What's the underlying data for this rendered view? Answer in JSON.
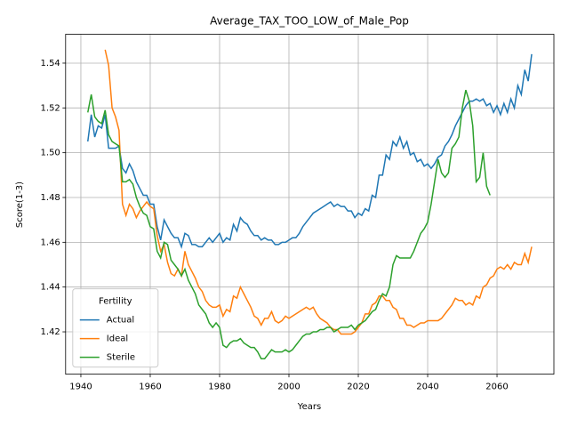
{
  "chart_data": {
    "type": "line",
    "title": "Average_TAX_TOO_LOW_of_Male_Pop",
    "x_label": "Years",
    "y_label": "Score(1-3)",
    "x": [
      1942,
      1943,
      1944,
      1945,
      1946,
      1947,
      1948,
      1949,
      1950,
      1951,
      1952,
      1953,
      1954,
      1955,
      1956,
      1957,
      1958,
      1959,
      1960,
      1961,
      1962,
      1963,
      1964,
      1965,
      1966,
      1967,
      1968,
      1969,
      1970,
      1971,
      1972,
      1973,
      1974,
      1975,
      1976,
      1977,
      1978,
      1979,
      1980,
      1981,
      1982,
      1983,
      1984,
      1985,
      1986,
      1987,
      1988,
      1989,
      1990,
      1991,
      1992,
      1993,
      1994,
      1995,
      1996,
      1997,
      1998,
      1999,
      2000,
      2001,
      2002,
      2003,
      2004,
      2005,
      2006,
      2007,
      2008,
      2009,
      2010,
      2011,
      2012,
      2013,
      2014,
      2015,
      2016,
      2017,
      2018,
      2019,
      2020,
      2021,
      2022,
      2023,
      2024,
      2025,
      2026,
      2027,
      2028,
      2029,
      2030,
      2031,
      2032,
      2033,
      2034,
      2035,
      2036,
      2037,
      2038,
      2039,
      2040,
      2041,
      2042,
      2043,
      2044,
      2045,
      2046,
      2047,
      2048,
      2049,
      2050,
      2051,
      2052,
      2053,
      2054,
      2055,
      2056,
      2057,
      2058,
      2059,
      2060,
      2061,
      2062,
      2063,
      2064,
      2065,
      2066,
      2067,
      2068,
      2069,
      2070
    ],
    "series": [
      {
        "name": "Actual",
        "color": "#1f77b4",
        "values": [
          1.505,
          1.517,
          1.507,
          1.512,
          1.511,
          1.517,
          1.502,
          1.502,
          1.502,
          1.503,
          1.493,
          1.491,
          1.495,
          1.492,
          1.487,
          1.484,
          1.481,
          1.481,
          1.477,
          1.477,
          1.467,
          1.461,
          1.47,
          1.467,
          1.464,
          1.462,
          1.462,
          1.458,
          1.464,
          1.463,
          1.459,
          1.459,
          1.458,
          1.458,
          1.46,
          1.462,
          1.46,
          1.462,
          1.464,
          1.46,
          1.462,
          1.461,
          1.468,
          1.465,
          1.471,
          1.469,
          1.468,
          1.465,
          1.463,
          1.463,
          1.461,
          1.462,
          1.461,
          1.461,
          1.459,
          1.459,
          1.46,
          1.46,
          1.461,
          1.462,
          1.462,
          1.464,
          1.467,
          1.469,
          1.471,
          1.473,
          1.474,
          1.475,
          1.476,
          1.477,
          1.478,
          1.476,
          1.477,
          1.476,
          1.476,
          1.474,
          1.474,
          1.471,
          1.473,
          1.472,
          1.475,
          1.474,
          1.481,
          1.48,
          1.49,
          1.49,
          1.499,
          1.497,
          1.505,
          1.503,
          1.507,
          1.502,
          1.505,
          1.499,
          1.5,
          1.496,
          1.497,
          1.494,
          1.495,
          1.493,
          1.495,
          1.498,
          1.499,
          1.503,
          1.505,
          1.508,
          1.512,
          1.515,
          1.518,
          1.521,
          1.523,
          1.523,
          1.524,
          1.523,
          1.524,
          1.521,
          1.522,
          1.518,
          1.521,
          1.517,
          1.522,
          1.518,
          1.524,
          1.52,
          1.53,
          1.526,
          1.537,
          1.532,
          1.544
        ]
      },
      {
        "name": "Ideal",
        "color": "#ff7f0e",
        "values": [
          null,
          null,
          null,
          null,
          null,
          1.546,
          1.539,
          1.52,
          1.516,
          1.51,
          1.477,
          1.472,
          1.477,
          1.475,
          1.471,
          1.474,
          1.476,
          1.478,
          1.476,
          1.475,
          1.463,
          1.456,
          1.459,
          1.451,
          1.446,
          1.445,
          1.448,
          1.445,
          1.456,
          1.45,
          1.447,
          1.444,
          1.44,
          1.438,
          1.434,
          1.432,
          1.431,
          1.431,
          1.432,
          1.427,
          1.43,
          1.429,
          1.436,
          1.435,
          1.44,
          1.437,
          1.434,
          1.431,
          1.427,
          1.426,
          1.423,
          1.426,
          1.426,
          1.429,
          1.425,
          1.424,
          1.425,
          1.427,
          1.426,
          1.427,
          1.428,
          1.429,
          1.43,
          1.431,
          1.43,
          1.431,
          1.428,
          1.426,
          1.425,
          1.424,
          1.422,
          1.421,
          1.421,
          1.419,
          1.419,
          1.419,
          1.419,
          1.42,
          1.422,
          1.424,
          1.428,
          1.428,
          1.432,
          1.433,
          1.436,
          1.436,
          1.434,
          1.434,
          1.431,
          1.43,
          1.426,
          1.426,
          1.423,
          1.423,
          1.422,
          1.423,
          1.424,
          1.424,
          1.425,
          1.425,
          1.425,
          1.425,
          1.426,
          1.428,
          1.43,
          1.432,
          1.435,
          1.434,
          1.434,
          1.432,
          1.433,
          1.432,
          1.436,
          1.435,
          1.44,
          1.441,
          1.444,
          1.445,
          1.448,
          1.449,
          1.448,
          1.45,
          1.448,
          1.451,
          1.45,
          1.45,
          1.455,
          1.451,
          1.458
        ]
      },
      {
        "name": "Sterile",
        "color": "#2ca02c",
        "values": [
          1.518,
          1.526,
          1.516,
          1.514,
          1.513,
          1.519,
          1.508,
          1.505,
          1.504,
          1.503,
          1.487,
          1.487,
          1.488,
          1.486,
          1.48,
          1.476,
          1.473,
          1.472,
          1.467,
          1.466,
          1.456,
          1.453,
          1.46,
          1.459,
          1.452,
          1.45,
          1.448,
          1.445,
          1.448,
          1.443,
          1.44,
          1.437,
          1.432,
          1.43,
          1.428,
          1.424,
          1.422,
          1.424,
          1.422,
          1.414,
          1.413,
          1.415,
          1.416,
          1.416,
          1.417,
          1.415,
          1.414,
          1.413,
          1.413,
          1.411,
          1.408,
          1.408,
          1.41,
          1.412,
          1.411,
          1.411,
          1.411,
          1.412,
          1.411,
          1.412,
          1.414,
          1.416,
          1.418,
          1.419,
          1.419,
          1.42,
          1.42,
          1.421,
          1.421,
          1.422,
          1.422,
          1.42,
          1.421,
          1.422,
          1.422,
          1.422,
          1.423,
          1.421,
          1.423,
          1.424,
          1.425,
          1.427,
          1.429,
          1.43,
          1.434,
          1.437,
          1.436,
          1.44,
          1.45,
          1.454,
          1.453,
          1.453,
          1.453,
          1.453,
          1.456,
          1.46,
          1.464,
          1.466,
          1.469,
          1.477,
          1.487,
          1.497,
          1.491,
          1.489,
          1.491,
          1.502,
          1.504,
          1.507,
          1.52,
          1.528,
          1.523,
          1.512,
          1.487,
          1.489,
          1.5,
          1.485,
          1.481,
          null,
          null,
          null,
          null,
          null,
          null,
          null,
          null,
          null,
          null,
          null,
          null
        ]
      }
    ],
    "xlim": [
      1935.6,
      2076.4
    ],
    "xticks": [
      1940,
      1960,
      1980,
      2000,
      2020,
      2040,
      2060
    ],
    "ylim": [
      1.4011,
      1.5529
    ],
    "yticks": [
      1.42,
      1.44,
      1.46,
      1.48,
      {
        "value": 1.5,
        "label": "1.50"
      },
      1.52,
      1.54
    ],
    "grid": true,
    "legend_title": "Fertility",
    "legend_position": "lower left"
  }
}
